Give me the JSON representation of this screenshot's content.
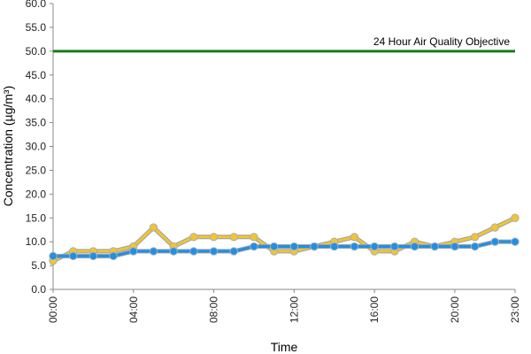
{
  "chart_data": {
    "type": "line",
    "xlabel": "Time",
    "ylabel": "Concentration (µg/m³)",
    "ylim": [
      0,
      60
    ],
    "y_ticks": [
      "0.0",
      "5.0",
      "10.0",
      "15.0",
      "20.0",
      "25.0",
      "30.0",
      "35.0",
      "40.0",
      "45.0",
      "50.0",
      "55.0",
      "60.0"
    ],
    "x_ticks": [
      "00:00",
      "04:00",
      "08:00",
      "12:00",
      "16:00",
      "20:00",
      "23:00"
    ],
    "x_tick_hours": [
      0,
      4,
      8,
      12,
      16,
      20,
      23
    ],
    "x": [
      0,
      1,
      2,
      3,
      4,
      5,
      6,
      7,
      8,
      9,
      10,
      11,
      12,
      13,
      14,
      15,
      16,
      17,
      18,
      19,
      20,
      21,
      22,
      23
    ],
    "grid": false,
    "legend": "none",
    "series": [
      {
        "color": "#f2c530",
        "marker_fill": "#f2c530",
        "values": [
          6,
          8,
          8,
          8,
          9,
          13,
          9,
          11,
          11,
          11,
          11,
          8,
          8,
          9,
          10,
          11,
          8,
          8,
          10,
          9,
          10,
          11,
          13,
          15
        ]
      },
      {
        "color": "#1e90e8",
        "marker_fill": "#1e90e8",
        "values": [
          7,
          7,
          7,
          7,
          8,
          8,
          8,
          8,
          8,
          8,
          9,
          9,
          9,
          9,
          9,
          9,
          9,
          9,
          9,
          9,
          9,
          9,
          10,
          10
        ]
      }
    ],
    "reference_line": {
      "value": 50,
      "label": "24 Hour Air Quality Objective",
      "color": "#1a7a1a"
    }
  }
}
